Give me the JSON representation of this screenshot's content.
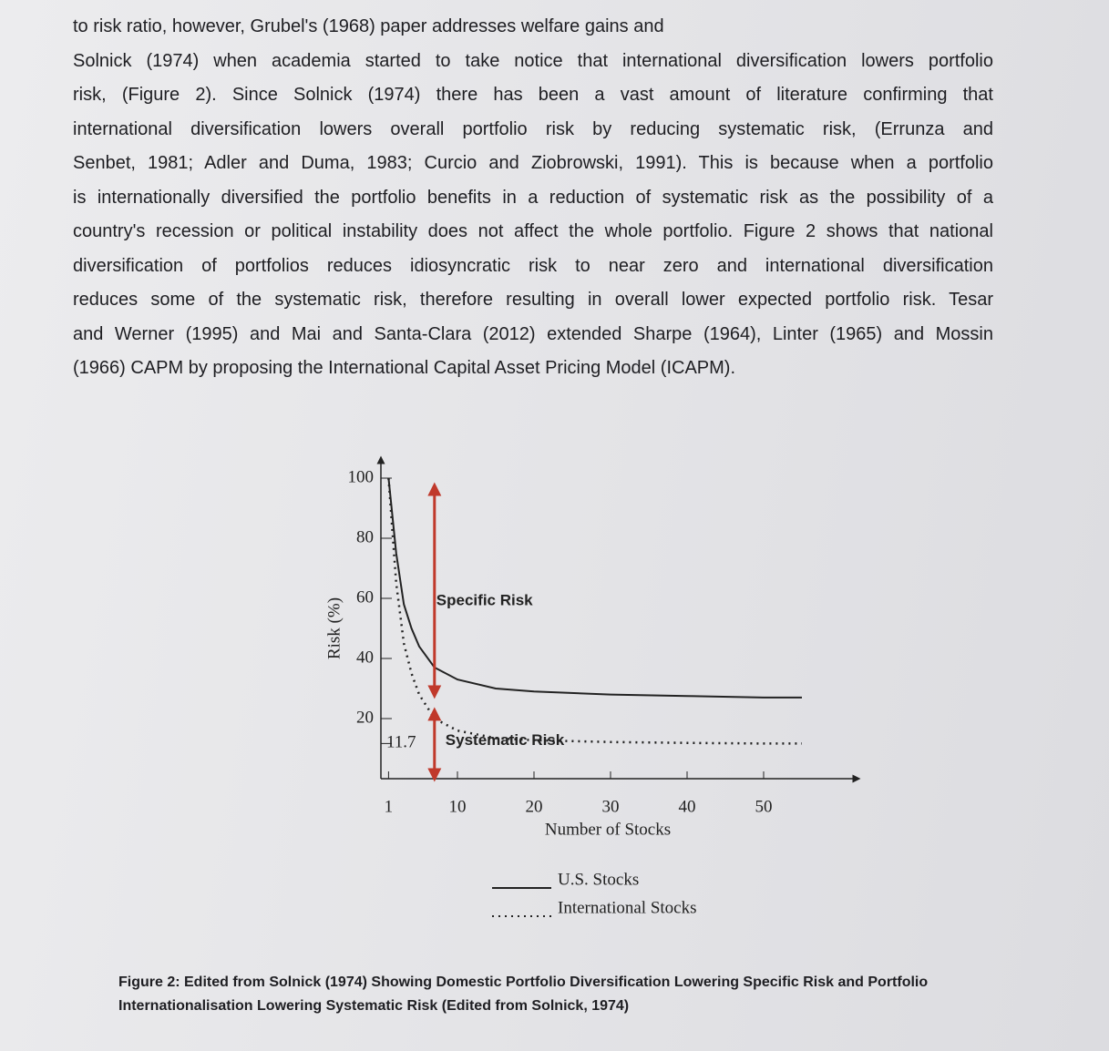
{
  "body": {
    "lines": [
      "to risk ratio, however, Grubel's (1968) paper addresses welfare gains and",
      "Solnick (1974) when academia started to take notice that international diversification lowers portfolio",
      "risk, (Figure 2). Since Solnick (1974) there has been a vast amount of literature confirming that",
      "international diversification lowers overall portfolio risk by reducing systematic risk, (Errunza and",
      "Senbet, 1981; Adler and Duma, 1983; Curcio and Ziobrowski, 1991). This is because when a portfolio",
      "is internationally diversified the portfolio benefits in a reduction of systematic risk as the possibility of a",
      "country's recession or political instability does not affect the whole portfolio. Figure 2 shows that national",
      "diversification of portfolios reduces idiosyncratic risk to near zero and international diversification",
      "reduces some of the systematic risk, therefore resulting in overall lower expected portfolio risk. Tesar",
      "and Werner (1995) and Mai and Santa-Clara (2012) extended Sharpe (1964), Linter (1965) and Mossin",
      "(1966) CAPM by proposing the International Capital Asset Pricing Model (ICAPM)."
    ]
  },
  "figure": {
    "type": "line",
    "x_label": "Number of Stocks",
    "y_label": "Risk (%)",
    "xlim": [
      0,
      55
    ],
    "ylim": [
      0,
      100
    ],
    "xticks": [
      1,
      10,
      20,
      30,
      40,
      50
    ],
    "yticks": [
      11.7,
      20,
      40,
      60,
      80,
      100
    ],
    "x": [
      1,
      2,
      3,
      4,
      5,
      7,
      10,
      15,
      20,
      30,
      40,
      50,
      55
    ],
    "series": [
      {
        "name": "U.S. Stocks",
        "color": "#222222",
        "style": "solid",
        "values": [
          100,
          75,
          58,
          50,
          44,
          37,
          33,
          30,
          29,
          28,
          27.5,
          27,
          27
        ]
      },
      {
        "name": "International Stocks",
        "color": "#222222",
        "style": "dotted",
        "values": [
          100,
          65,
          45,
          35,
          28,
          20,
          16,
          13.5,
          12.8,
          12.2,
          11.9,
          11.7,
          11.7
        ]
      }
    ],
    "annotations": [
      "Specific Risk",
      "Systematic Risk"
    ],
    "arrow_color": "#c0392b"
  },
  "caption": {
    "lines": [
      "Figure 2: Edited from Solnick (1974) Showing Domestic Portfolio Diversification Lowering Specific Risk and Portfolio",
      "Internationalisation Lowering Systematic Risk (Edited from Solnick, 1974)"
    ]
  }
}
